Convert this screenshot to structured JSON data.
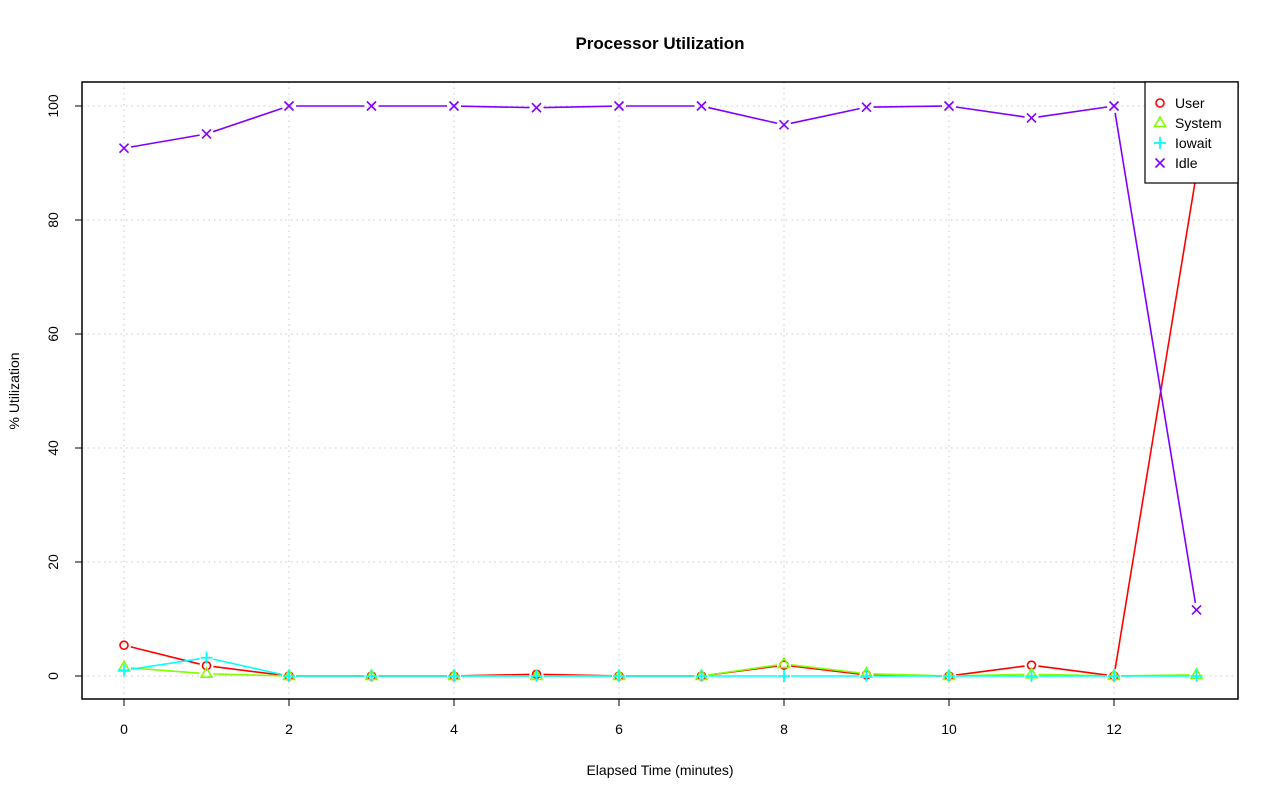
{
  "chart_data": {
    "type": "line",
    "title": "Processor Utilization",
    "xlabel": "Elapsed Time (minutes)",
    "ylabel": "% Utilization",
    "xlim": [
      -0.5,
      13.5
    ],
    "ylim": [
      -4,
      104
    ],
    "xticks": [
      0,
      2,
      4,
      6,
      8,
      10,
      12
    ],
    "yticks": [
      0,
      20,
      40,
      60,
      80,
      100
    ],
    "grid": true,
    "legend_position": "top-right",
    "x": [
      0,
      1,
      2,
      3,
      4,
      5,
      6,
      7,
      8,
      9,
      10,
      11,
      12,
      13
    ],
    "series": [
      {
        "name": "User",
        "color": "#ff0000",
        "marker": "circle",
        "values": [
          5.4,
          1.8,
          0,
          0,
          0,
          0.3,
          0,
          0,
          1.9,
          0.2,
          0,
          1.9,
          0,
          88.2
        ]
      },
      {
        "name": "System",
        "color": "#80ff00",
        "marker": "triangle",
        "values": [
          1.5,
          0.4,
          0,
          0,
          0,
          0,
          0,
          0,
          2.1,
          0.4,
          0,
          0.3,
          0,
          0.2
        ]
      },
      {
        "name": "Iowait",
        "color": "#00ffff",
        "marker": "plus",
        "values": [
          1.0,
          3.2,
          0,
          0,
          0,
          0,
          0,
          0,
          0,
          0,
          0,
          0,
          0,
          0
        ]
      },
      {
        "name": "Idle",
        "color": "#8000ff",
        "marker": "cross",
        "values": [
          92.6,
          95.1,
          100,
          100,
          100,
          99.7,
          100,
          100,
          96.7,
          99.8,
          100,
          97.9,
          100,
          11.6
        ]
      }
    ]
  }
}
